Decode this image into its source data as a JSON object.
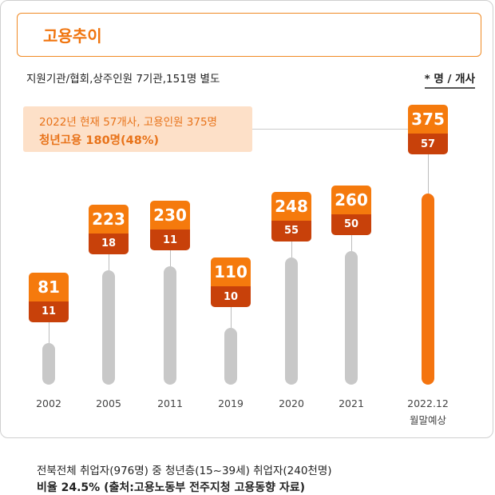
{
  "title": "고용추이",
  "subtitle": "지원기관/협회,상주인원 7기관,151명 별도",
  "unit_note": "* 명 / 개사",
  "callout": {
    "line1": "2022년 현재 57개사, 고용인원 375명",
    "line2": "청년고용 180명(48%)"
  },
  "colors": {
    "accent": "#f4740f",
    "dark_accent": "#c8410a",
    "bar_gray": "#c8c8c8",
    "callout_bg": "#fde0c8"
  },
  "chart_data": {
    "type": "bar",
    "categories": [
      "2002",
      "2005",
      "2011",
      "2019",
      "2020",
      "2021",
      "2022.12"
    ],
    "category_notes": [
      "",
      "",
      "",
      "",
      "",
      "",
      "월말예상"
    ],
    "series": [
      {
        "name": "명",
        "values": [
          81,
          223,
          230,
          110,
          248,
          260,
          375
        ]
      },
      {
        "name": "개사",
        "values": [
          11,
          18,
          11,
          10,
          55,
          50,
          57
        ]
      }
    ],
    "highlight_index": 6,
    "grid": false
  },
  "footer": {
    "line1": "전북전체 취업자(976명) 중 청년층(15~39세) 취업자(240천명)",
    "line2": "비율 24.5% (출처:고용노동부 전주지청 고용동향 자료)"
  }
}
